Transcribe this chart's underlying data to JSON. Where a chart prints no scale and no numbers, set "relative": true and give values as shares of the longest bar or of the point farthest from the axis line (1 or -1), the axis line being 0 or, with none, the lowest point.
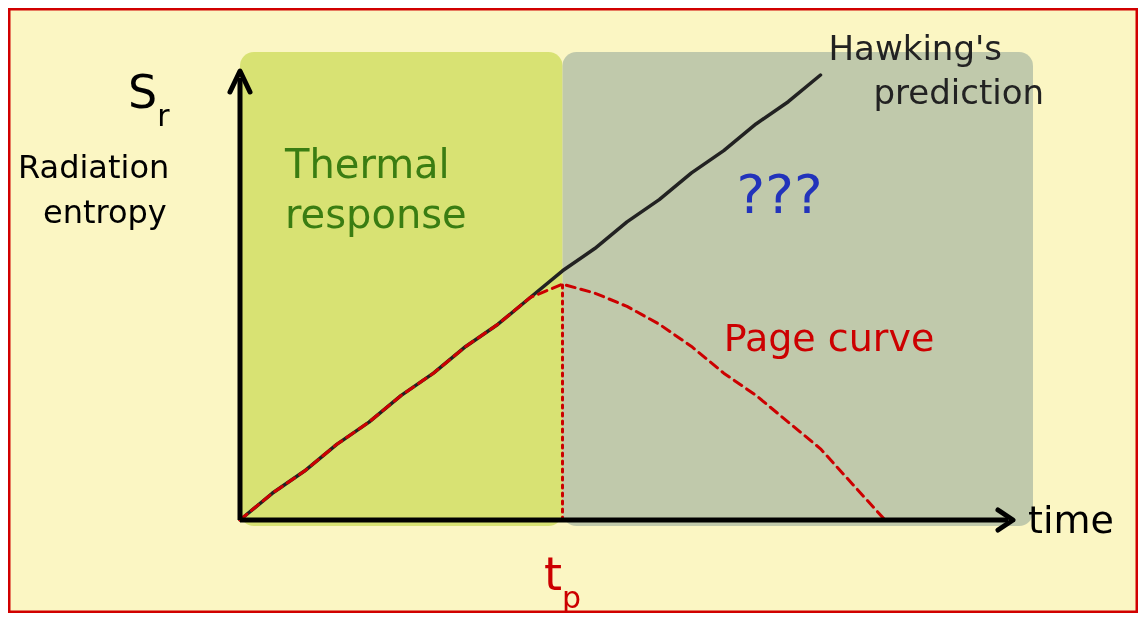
{
  "chart_data": {
    "type": "line",
    "relative": true,
    "xlabel": "time",
    "ylabel": "Radiation entropy",
    "annotations": [
      "S$_{r}$",
      "Thermal response",
      "???",
      "t$_{p}$"
    ],
    "categories": [
      null,
      null,
      null,
      null,
      null,
      null,
      null,
      null,
      null,
      null,
      null,
      null,
      null,
      null,
      null,
      null,
      null,
      null,
      null,
      null,
      null,
      null,
      null,
      null,
      null
    ],
    "series": [
      {
        "name": "Hawking's prediction",
        "color": "#222222",
        "line_style": "solid",
        "values": [
          0,
          0.06,
          0.11,
          0.17,
          0.22,
          0.28,
          0.33,
          0.39,
          0.44,
          0.5,
          0.56,
          0.61,
          0.67,
          0.72,
          0.78,
          0.83,
          0.89,
          0.94,
          1,
          null,
          null,
          null,
          null,
          null,
          null
        ]
      },
      {
        "name": "Page curve",
        "color": "#cc0000",
        "line_style": "dashed",
        "values": [
          0,
          0.06,
          0.11,
          0.17,
          0.22,
          0.28,
          0.33,
          0.39,
          0.44,
          0.5,
          0.53,
          0.51,
          0.48,
          0.44,
          0.39,
          0.33,
          0.28,
          0.22,
          0.16,
          0.08,
          0,
          null,
          null,
          null,
          null
        ]
      }
    ]
  }
}
